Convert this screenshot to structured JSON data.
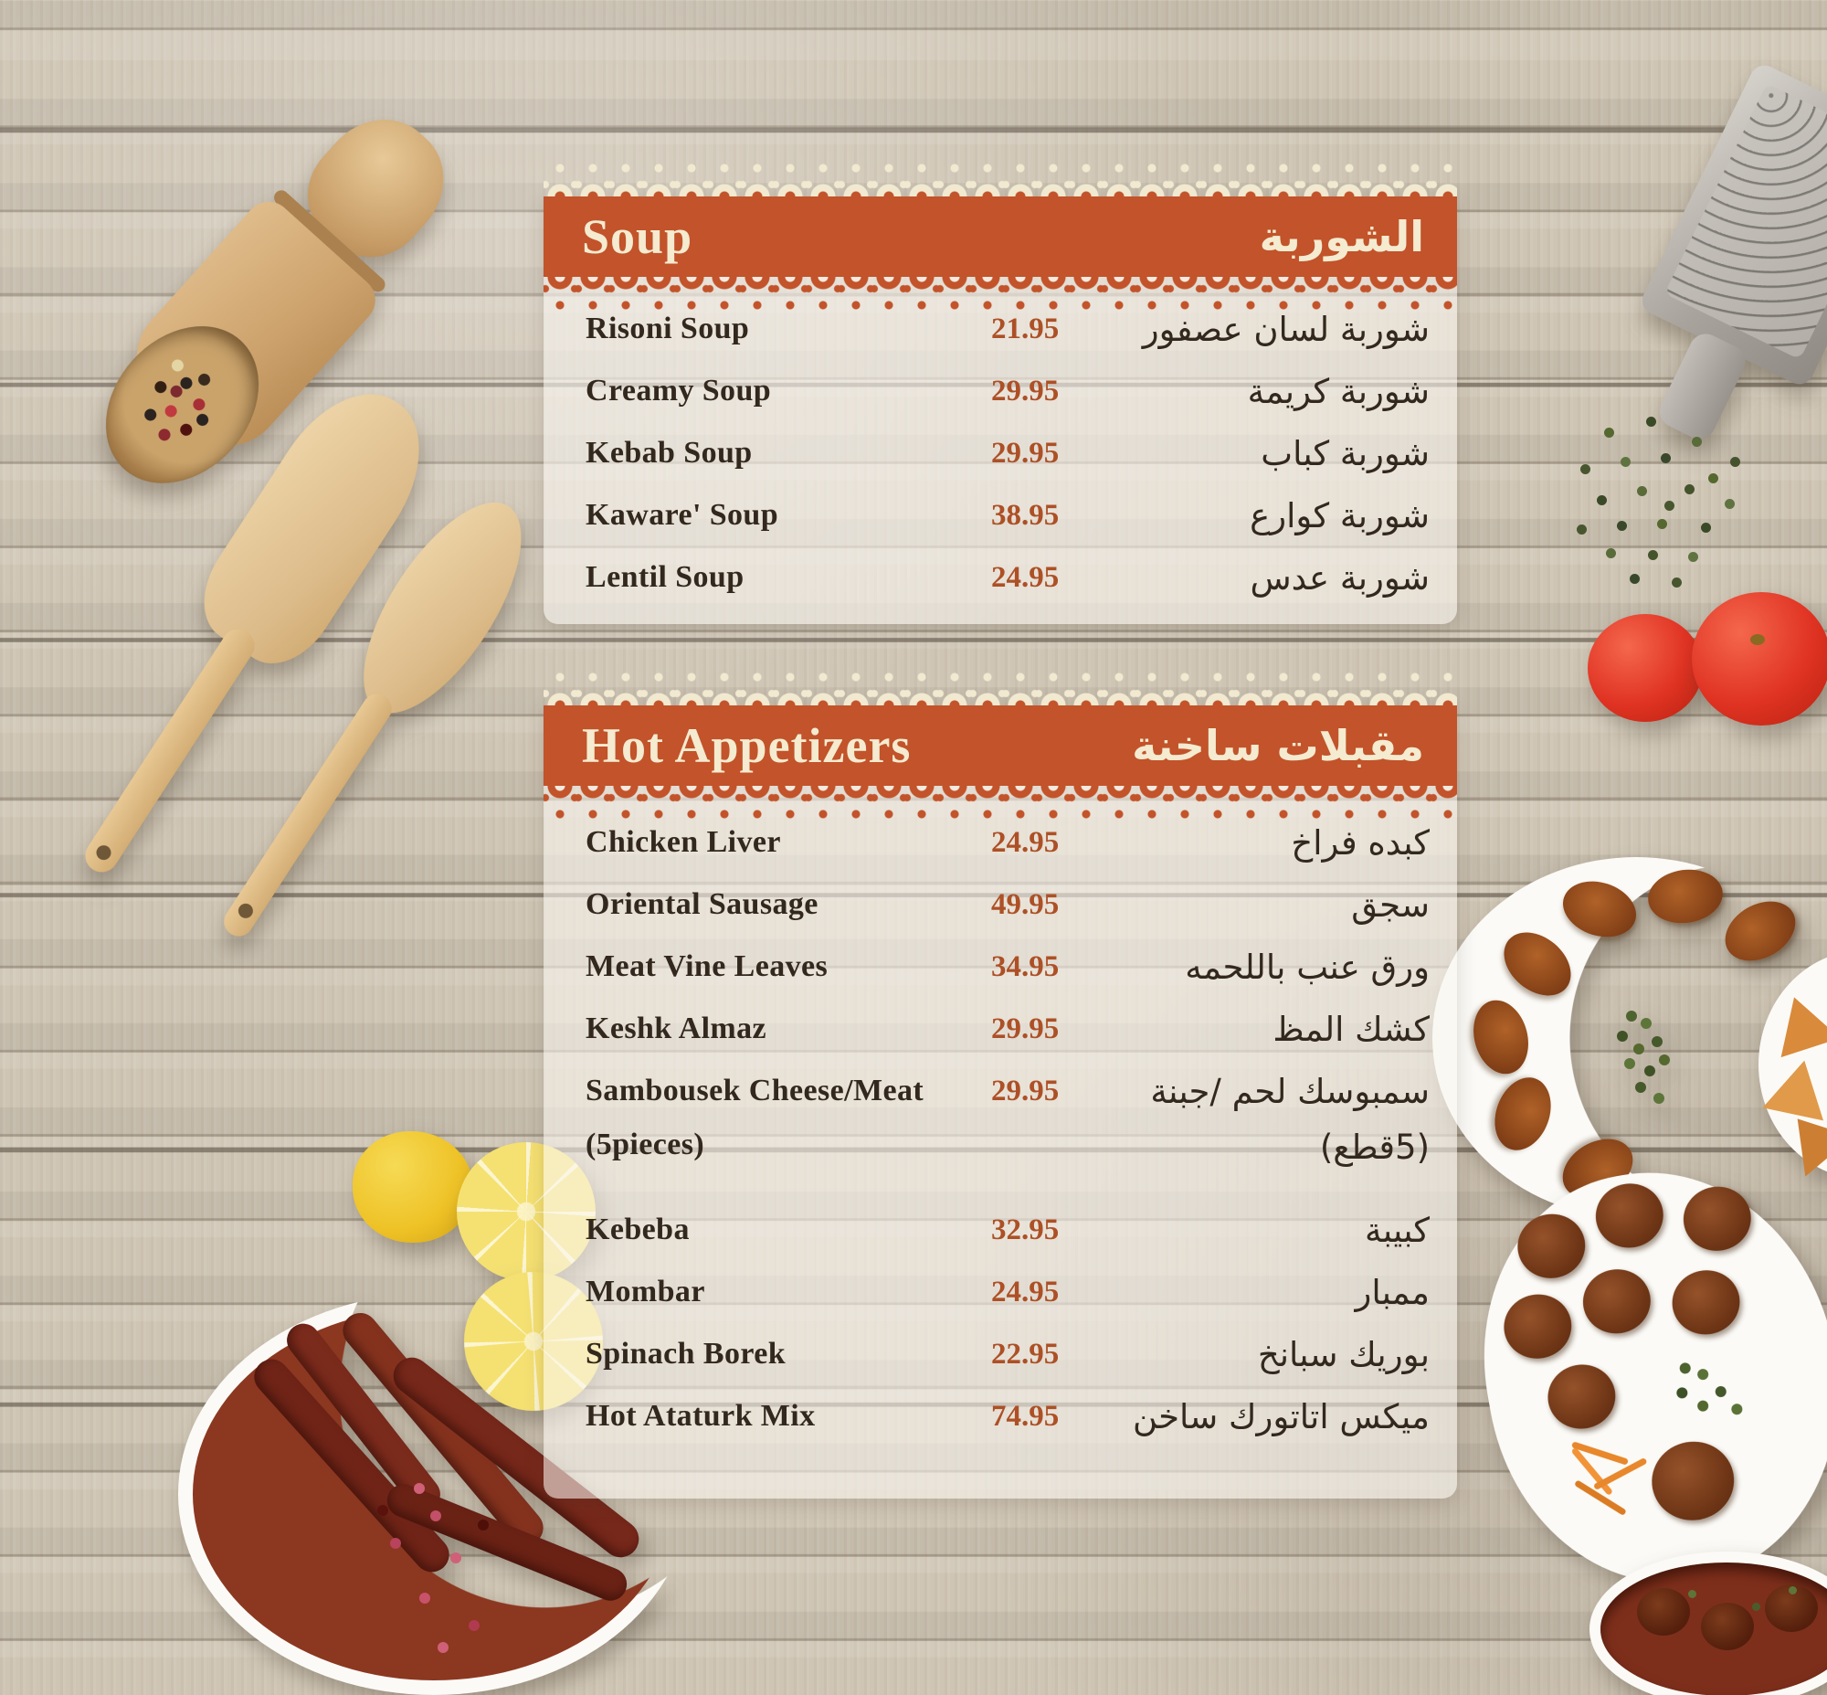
{
  "colors": {
    "band_orange": "#c2532a",
    "title_cream": "#f4ebd0",
    "item_ink": "#33281d",
    "price_orange": "#ad5026"
  },
  "sections": [
    {
      "title_en": "Soup",
      "title_ar": "الشوربة",
      "items": [
        {
          "name_en": "Risoni Soup",
          "price": "21.95",
          "name_ar": "شوربة لسان عصفور"
        },
        {
          "name_en": "Creamy Soup",
          "price": "29.95",
          "name_ar": "شوربة كريمة"
        },
        {
          "name_en": "Kebab Soup",
          "price": "29.95",
          "name_ar": "شوربة كباب"
        },
        {
          "name_en": "Kaware' Soup",
          "price": "38.95",
          "name_ar": "شوربة كوارع"
        },
        {
          "name_en": "Lentil Soup",
          "price": "24.95",
          "name_ar": "شوربة عدس"
        }
      ]
    },
    {
      "title_en": "Hot Appetizers",
      "title_ar": "مقبلات ساخنة",
      "items": [
        {
          "name_en": "Chicken Liver",
          "price": "24.95",
          "name_ar": "كبده فراخ"
        },
        {
          "name_en": "Oriental Sausage",
          "price": "49.95",
          "name_ar": "سجق"
        },
        {
          "name_en": "Meat Vine Leaves",
          "price": "34.95",
          "name_ar": "ورق عنب باللحمه"
        },
        {
          "name_en": "Keshk Almaz",
          "price": "29.95",
          "name_ar": "كشك المظ"
        },
        {
          "name_en": "Sambousek Cheese/Meat",
          "price": "29.95",
          "name_ar": "سمبوسك لحم /جبنة",
          "note_en": "(5pieces)",
          "note_ar": "(5قطع)"
        },
        {
          "name_en": "Kebeba",
          "price": "32.95",
          "name_ar": "كبيبة"
        },
        {
          "name_en": "Mombar",
          "price": "24.95",
          "name_ar": "ممبار"
        },
        {
          "name_en": "Spinach Borek",
          "price": "22.95",
          "name_ar": "بوريك سبانخ"
        },
        {
          "name_en": "Hot Ataturk Mix",
          "price": "74.95",
          "name_ar": "ميكس اتاتورك ساخن"
        }
      ]
    }
  ]
}
